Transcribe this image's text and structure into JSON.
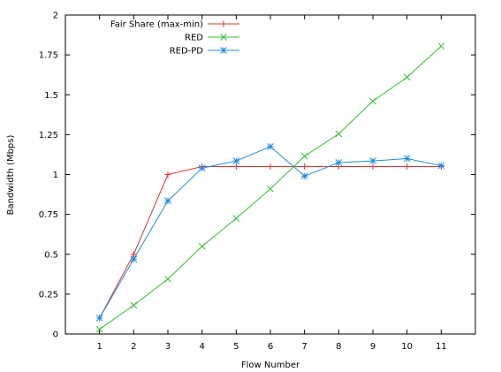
{
  "chart_data": {
    "type": "line",
    "title": "",
    "xlabel": "Flow Number",
    "ylabel": "Bandwidth (Mbps)",
    "xlim": [
      0,
      12
    ],
    "ylim": [
      0,
      2
    ],
    "x_ticks": [
      "1",
      "2",
      "3",
      "4",
      "5",
      "6",
      "7",
      "8",
      "9",
      "10",
      "11"
    ],
    "y_ticks": [
      "0",
      "0.25",
      "0.5",
      "0.75",
      "1",
      "1.25",
      "1.5",
      "1.75",
      "2"
    ],
    "grid": false,
    "legend_position": "top-left",
    "x": [
      1,
      2,
      3,
      4,
      5,
      6,
      7,
      8,
      9,
      10,
      11
    ],
    "series": [
      {
        "name": "Fair Share (max-min)",
        "color": "#e8302a",
        "marker": "plus",
        "values": [
          0.1,
          0.5,
          1.0,
          1.05,
          1.05,
          1.05,
          1.05,
          1.05,
          1.05,
          1.05,
          1.05
        ]
      },
      {
        "name": "RED",
        "color": "#33c12f",
        "marker": "cross",
        "values": [
          0.03,
          0.18,
          0.345,
          0.55,
          0.725,
          0.91,
          1.115,
          1.255,
          1.46,
          1.61,
          1.805
        ]
      },
      {
        "name": "RED-PD",
        "color": "#1a8ee0",
        "marker": "star",
        "values": [
          0.1,
          0.47,
          0.835,
          1.04,
          1.085,
          1.175,
          0.99,
          1.075,
          1.085,
          1.1,
          1.055
        ]
      }
    ]
  }
}
